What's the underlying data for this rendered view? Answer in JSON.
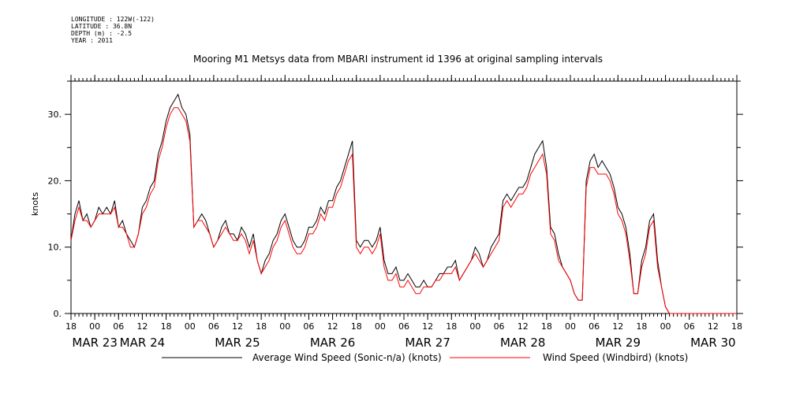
{
  "header": {
    "longitude": "LONGITUDE : 122W(-122)",
    "latitude": "LATITUDE : 36.8N",
    "depth": "DEPTH (m) : -2.5",
    "year": "YEAR : 2011"
  },
  "chart_data": {
    "type": "line",
    "title": "Mooring M1 Metsys data from MBARI instrument id 1396 at original sampling intervals",
    "ylabel": "knots",
    "xlabel": "",
    "ylim": [
      0,
      35
    ],
    "yticks": [
      0,
      10,
      20,
      30
    ],
    "ytick_labels": [
      "0.",
      "10.",
      "20.",
      "30."
    ],
    "xlim_hours": [
      0,
      168
    ],
    "hour_tick_labels": [
      "18",
      "00",
      "06",
      "12",
      "18",
      "00",
      "06",
      "12",
      "18",
      "00",
      "06",
      "12",
      "18",
      "00",
      "06",
      "12",
      "18",
      "00",
      "06",
      "12",
      "18",
      "00",
      "06",
      "12",
      "18",
      "00",
      "06",
      "12",
      "18"
    ],
    "date_labels": [
      "MAR 23",
      "MAR 24",
      "MAR 25",
      "MAR 26",
      "MAR 27",
      "MAR 28",
      "MAR 29",
      "MAR 30"
    ],
    "date_label_hours": [
      6,
      18,
      42,
      66,
      90,
      114,
      138,
      162
    ],
    "grid": false,
    "legend_position": "bottom",
    "series": [
      {
        "name": "Average Wind Speed (Sonic-n/a) (knots)",
        "color": "#000000",
        "x": [
          0,
          1,
          2,
          3,
          4,
          5,
          6,
          7,
          8,
          9,
          10,
          11,
          12,
          13,
          14,
          15,
          16,
          17,
          18,
          19,
          20,
          21,
          22,
          23,
          24,
          25,
          26,
          27,
          28,
          29,
          30,
          31,
          32,
          33,
          34,
          35,
          36,
          37,
          38,
          39,
          40,
          41,
          42,
          43,
          44,
          45,
          46,
          47,
          48,
          49,
          50,
          51,
          52,
          53,
          54,
          55,
          56,
          57,
          58,
          59,
          60,
          61,
          62,
          63,
          64,
          65,
          66,
          67,
          68,
          69,
          70,
          71,
          72,
          73,
          74,
          75,
          76,
          77,
          78,
          79,
          80,
          81,
          82,
          83,
          84,
          85,
          86,
          87,
          88,
          89,
          90,
          91,
          92,
          93,
          94,
          95,
          96,
          97,
          98,
          99,
          100,
          101,
          102,
          103,
          104,
          105,
          106,
          107,
          108,
          109,
          110,
          111,
          112,
          113,
          114,
          115,
          116,
          117,
          118,
          119,
          120,
          121,
          122,
          123,
          124,
          125,
          126,
          127,
          128,
          129,
          130,
          131,
          132,
          133,
          134,
          135,
          136,
          137,
          138,
          139,
          140,
          141,
          142,
          143,
          144,
          145,
          146,
          147,
          148,
          149,
          150,
          151,
          152,
          153,
          154,
          155,
          156,
          157,
          158,
          159,
          160,
          161,
          162,
          163,
          164,
          165,
          166,
          167,
          168
        ],
        "values": [
          11,
          15,
          17,
          14,
          15,
          13,
          14,
          16,
          15,
          16,
          15,
          17,
          13,
          14,
          12,
          11,
          10,
          12,
          16,
          17,
          19,
          20,
          24,
          26,
          29,
          31,
          32,
          33,
          31,
          30,
          27,
          13,
          14,
          15,
          14,
          12,
          10,
          11,
          13,
          14,
          12,
          12,
          11,
          13,
          12,
          10,
          12,
          8,
          6,
          8,
          9,
          11,
          12,
          14,
          15,
          13,
          11,
          10,
          10,
          11,
          13,
          13,
          14,
          16,
          15,
          17,
          17,
          19,
          20,
          22,
          24,
          26,
          11,
          10,
          11,
          11,
          10,
          11,
          13,
          8,
          6,
          6,
          7,
          5,
          5,
          6,
          5,
          4,
          4,
          5,
          4,
          4,
          5,
          6,
          6,
          7,
          7,
          8,
          5,
          6,
          7,
          8,
          10,
          9,
          7,
          8,
          10,
          11,
          12,
          17,
          18,
          17,
          18,
          19,
          19,
          20,
          22,
          24,
          25,
          26,
          22,
          13,
          12,
          9,
          7,
          6,
          5,
          3,
          2,
          2,
          20,
          23,
          24,
          22,
          23,
          22,
          21,
          19,
          16,
          15,
          13,
          9,
          3,
          3,
          8,
          10,
          14,
          15,
          8,
          4,
          1,
          0,
          0,
          0,
          0,
          0,
          0,
          0,
          0,
          0,
          0,
          0,
          0,
          0,
          0,
          0,
          0,
          0,
          0
        ]
      },
      {
        "name": "Wind Speed (Windbird) (knots)",
        "color": "#ff0000",
        "x": [
          0,
          1,
          2,
          3,
          4,
          5,
          6,
          7,
          8,
          9,
          10,
          11,
          12,
          13,
          14,
          15,
          16,
          17,
          18,
          19,
          20,
          21,
          22,
          23,
          24,
          25,
          26,
          27,
          28,
          29,
          30,
          31,
          32,
          33,
          34,
          35,
          36,
          37,
          38,
          39,
          40,
          41,
          42,
          43,
          44,
          45,
          46,
          47,
          48,
          49,
          50,
          51,
          52,
          53,
          54,
          55,
          56,
          57,
          58,
          59,
          60,
          61,
          62,
          63,
          64,
          65,
          66,
          67,
          68,
          69,
          70,
          71,
          72,
          73,
          74,
          75,
          76,
          77,
          78,
          79,
          80,
          81,
          82,
          83,
          84,
          85,
          86,
          87,
          88,
          89,
          90,
          91,
          92,
          93,
          94,
          95,
          96,
          97,
          98,
          99,
          100,
          101,
          102,
          103,
          104,
          105,
          106,
          107,
          108,
          109,
          110,
          111,
          112,
          113,
          114,
          115,
          116,
          117,
          118,
          119,
          120,
          121,
          122,
          123,
          124,
          125,
          126,
          127,
          128,
          129,
          130,
          131,
          132,
          133,
          134,
          135,
          136,
          137,
          138,
          139,
          140,
          141,
          142,
          143,
          144,
          145,
          146,
          147,
          148,
          149,
          150,
          151,
          152,
          153,
          154,
          155,
          156,
          157,
          158,
          159,
          160,
          161,
          162,
          163,
          164,
          165,
          166,
          167,
          168
        ],
        "values": [
          11,
          14,
          16,
          14,
          14,
          13,
          14,
          15,
          15,
          15,
          15,
          16,
          13,
          13,
          12,
          10,
          10,
          12,
          15,
          16,
          18,
          19,
          23,
          25,
          28,
          30,
          31,
          31,
          30,
          29,
          26,
          13,
          14,
          14,
          13,
          12,
          10,
          11,
          12,
          13,
          12,
          11,
          11,
          12,
          11,
          9,
          11,
          8,
          6,
          7,
          8,
          10,
          11,
          13,
          14,
          12,
          10,
          9,
          9,
          10,
          12,
          12,
          13,
          15,
          14,
          16,
          16,
          18,
          19,
          21,
          23,
          24,
          10,
          9,
          10,
          10,
          9,
          10,
          12,
          7,
          5,
          5,
          6,
          4,
          4,
          5,
          4,
          3,
          3,
          4,
          4,
          4,
          5,
          5,
          6,
          6,
          6,
          7,
          5,
          6,
          7,
          8,
          9,
          8,
          7,
          8,
          9,
          10,
          11,
          16,
          17,
          16,
          17,
          18,
          18,
          19,
          21,
          22,
          23,
          24,
          21,
          12,
          11,
          8,
          7,
          6,
          5,
          3,
          2,
          2,
          19,
          22,
          22,
          21,
          21,
          21,
          20,
          18,
          15,
          14,
          12,
          8,
          3,
          3,
          7,
          9,
          13,
          14,
          7,
          4,
          1,
          0,
          0,
          0,
          0,
          0,
          0,
          0,
          0,
          0,
          0,
          0,
          0,
          0,
          0,
          0,
          0,
          0,
          0
        ]
      }
    ]
  }
}
